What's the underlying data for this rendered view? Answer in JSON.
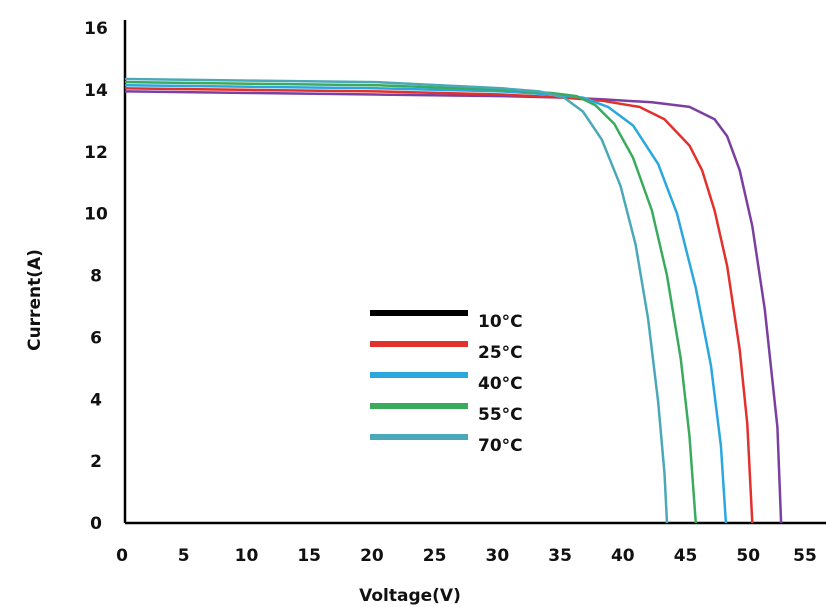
{
  "chart_data": {
    "type": "line",
    "title": "",
    "xlabel": "Voltage(V)",
    "ylabel": "Current(A)",
    "xlim": [
      0,
      55
    ],
    "ylim": [
      0,
      16
    ],
    "x_ticks": [
      "0",
      "5",
      "10",
      "15",
      "20",
      "25",
      "30",
      "35",
      "40",
      "45",
      "50",
      "55"
    ],
    "y_ticks": [
      "0",
      "2",
      "4",
      "6",
      "8",
      "10",
      "12",
      "14",
      "16"
    ],
    "grid": false,
    "legend": "center",
    "series": [
      {
        "name": "10°C",
        "color": "#7b3fa0",
        "legend_color": "#000000",
        "points": [
          [
            0,
            13.95
          ],
          [
            10,
            13.9
          ],
          [
            20,
            13.85
          ],
          [
            30,
            13.8
          ],
          [
            35,
            13.75
          ],
          [
            38,
            13.7
          ],
          [
            42,
            13.6
          ],
          [
            45,
            13.45
          ],
          [
            47,
            13.05
          ],
          [
            48,
            12.5
          ],
          [
            49,
            11.4
          ],
          [
            50,
            9.6
          ],
          [
            51,
            6.9
          ],
          [
            52,
            3.1
          ],
          [
            52.3,
            0
          ]
        ]
      },
      {
        "name": "25°C",
        "color": "#e2312d",
        "legend_color": "#e2312d",
        "points": [
          [
            0,
            14.05
          ],
          [
            10,
            14.0
          ],
          [
            20,
            13.95
          ],
          [
            30,
            13.85
          ],
          [
            35,
            13.75
          ],
          [
            38,
            13.65
          ],
          [
            41,
            13.45
          ],
          [
            43,
            13.05
          ],
          [
            45,
            12.2
          ],
          [
            46,
            11.4
          ],
          [
            47,
            10.1
          ],
          [
            48,
            8.3
          ],
          [
            49,
            5.6
          ],
          [
            49.6,
            3.2
          ],
          [
            50,
            0
          ]
        ]
      },
      {
        "name": "40°C",
        "color": "#2aa7df",
        "legend_color": "#2aa7df",
        "points": [
          [
            0,
            14.15
          ],
          [
            10,
            14.1
          ],
          [
            20,
            14.05
          ],
          [
            30,
            13.95
          ],
          [
            34,
            13.85
          ],
          [
            36.5,
            13.75
          ],
          [
            38.5,
            13.45
          ],
          [
            40.5,
            12.85
          ],
          [
            42.5,
            11.6
          ],
          [
            44,
            10.0
          ],
          [
            45.5,
            7.6
          ],
          [
            46.7,
            5.1
          ],
          [
            47.5,
            2.5
          ],
          [
            47.9,
            0
          ]
        ]
      },
      {
        "name": "55°C",
        "color": "#3aab5c",
        "legend_color": "#3aab5c",
        "points": [
          [
            0,
            14.25
          ],
          [
            10,
            14.2
          ],
          [
            20,
            14.15
          ],
          [
            30,
            14.0
          ],
          [
            34,
            13.9
          ],
          [
            36,
            13.8
          ],
          [
            37.5,
            13.5
          ],
          [
            39,
            12.9
          ],
          [
            40.5,
            11.8
          ],
          [
            42,
            10.1
          ],
          [
            43.2,
            8.0
          ],
          [
            44.3,
            5.3
          ],
          [
            45,
            2.8
          ],
          [
            45.5,
            0
          ]
        ]
      },
      {
        "name": "70°C",
        "color": "#4aa8b8",
        "legend_color": "#4aa8b8",
        "points": [
          [
            0,
            14.35
          ],
          [
            10,
            14.3
          ],
          [
            20,
            14.25
          ],
          [
            30,
            14.05
          ],
          [
            33,
            13.95
          ],
          [
            35,
            13.75
          ],
          [
            36.5,
            13.3
          ],
          [
            38,
            12.4
          ],
          [
            39.5,
            10.9
          ],
          [
            40.7,
            9.0
          ],
          [
            41.7,
            6.6
          ],
          [
            42.5,
            3.9
          ],
          [
            43,
            1.6
          ],
          [
            43.2,
            0
          ]
        ]
      }
    ]
  }
}
